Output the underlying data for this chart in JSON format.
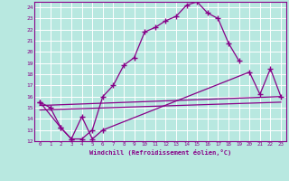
{
  "xlabel": "Windchill (Refroidissement éolien,°C)",
  "bg_color": "#b8e8e0",
  "line_color": "#880088",
  "grid_color": "#a0d0cc",
  "xlim": [
    -0.5,
    23.5
  ],
  "ylim": [
    12,
    24.5
  ],
  "xticks": [
    0,
    1,
    2,
    3,
    4,
    5,
    6,
    7,
    8,
    9,
    10,
    11,
    12,
    13,
    14,
    15,
    16,
    17,
    18,
    19,
    20,
    21,
    22,
    23
  ],
  "yticks": [
    12,
    13,
    14,
    15,
    16,
    17,
    18,
    19,
    20,
    21,
    22,
    23,
    24
  ],
  "series": [
    {
      "x": [
        0,
        1,
        2,
        3,
        4,
        5,
        6,
        7,
        8,
        9,
        10,
        11,
        12,
        13,
        14,
        15,
        16,
        17,
        18,
        19
      ],
      "y": [
        15.5,
        15.0,
        13.2,
        12.2,
        12.2,
        13.0,
        16.0,
        17.0,
        18.8,
        19.5,
        21.8,
        22.2,
        22.8,
        23.2,
        24.2,
        24.5,
        23.5,
        23.0,
        20.8,
        19.2
      ],
      "has_marker": true
    },
    {
      "x": [
        0,
        2,
        3,
        4,
        5,
        6,
        20,
        21,
        22,
        23
      ],
      "y": [
        15.5,
        13.2,
        12.2,
        14.2,
        12.2,
        13.0,
        18.2,
        16.2,
        18.5,
        16.0
      ],
      "has_marker": true
    },
    {
      "x": [
        0,
        23
      ],
      "y": [
        15.2,
        16.0
      ],
      "has_marker": false
    },
    {
      "x": [
        0,
        23
      ],
      "y": [
        14.8,
        15.5
      ],
      "has_marker": false
    }
  ]
}
